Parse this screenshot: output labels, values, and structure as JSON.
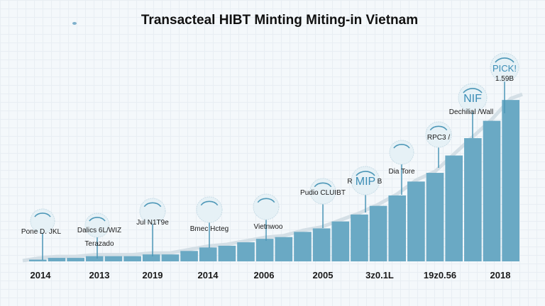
{
  "chart_data": {
    "type": "bar",
    "title": "Transacteal HIBT Minting Miting-in Vietnam",
    "xlabel": "",
    "ylabel": "",
    "grid": true,
    "x_tick_labels": [
      "2014",
      "2013",
      "2019",
      "2014",
      "2006",
      "2005",
      "3z0.1L",
      "19z0.56",
      "2018"
    ],
    "values": [
      1,
      2,
      2,
      3,
      3,
      3,
      4,
      4,
      6,
      8,
      9,
      11,
      13,
      14,
      17,
      19,
      23,
      27,
      32,
      38,
      46,
      51,
      61,
      71,
      81,
      93
    ],
    "ylim": [
      0,
      100
    ],
    "colors": {
      "bar": "#6aa9c4",
      "edge": "#d4dfe6",
      "stem": "#4d97b7",
      "circle": "#e6f1f6"
    },
    "annotations": [
      {
        "label": "Pone D. JKL",
        "sublabel": "",
        "inner": ""
      },
      {
        "label": "Dalics 6L/WIZ",
        "sublabel": "Terazado",
        "inner": ""
      },
      {
        "label": "Jul N1T9e",
        "sublabel": "",
        "inner": ""
      },
      {
        "label": "Bmec Hcteg",
        "sublabel": "",
        "inner": ""
      },
      {
        "label": "Vietnwoo",
        "sublabel": "",
        "inner": ""
      },
      {
        "label": "Pudio CLUIBT",
        "sublabel": "",
        "inner": ""
      },
      {
        "label": "R",
        "sublabel": "B",
        "inner": "MIP"
      },
      {
        "label": "Dia Tore",
        "sublabel": "",
        "inner": ""
      },
      {
        "label": "RPC3 /",
        "sublabel": "",
        "inner": ""
      },
      {
        "label": "Dechilial /Wall",
        "sublabel": "",
        "inner": "NIF"
      },
      {
        "label": "1.59B",
        "sublabel": "",
        "inner": "PICK!"
      }
    ]
  }
}
